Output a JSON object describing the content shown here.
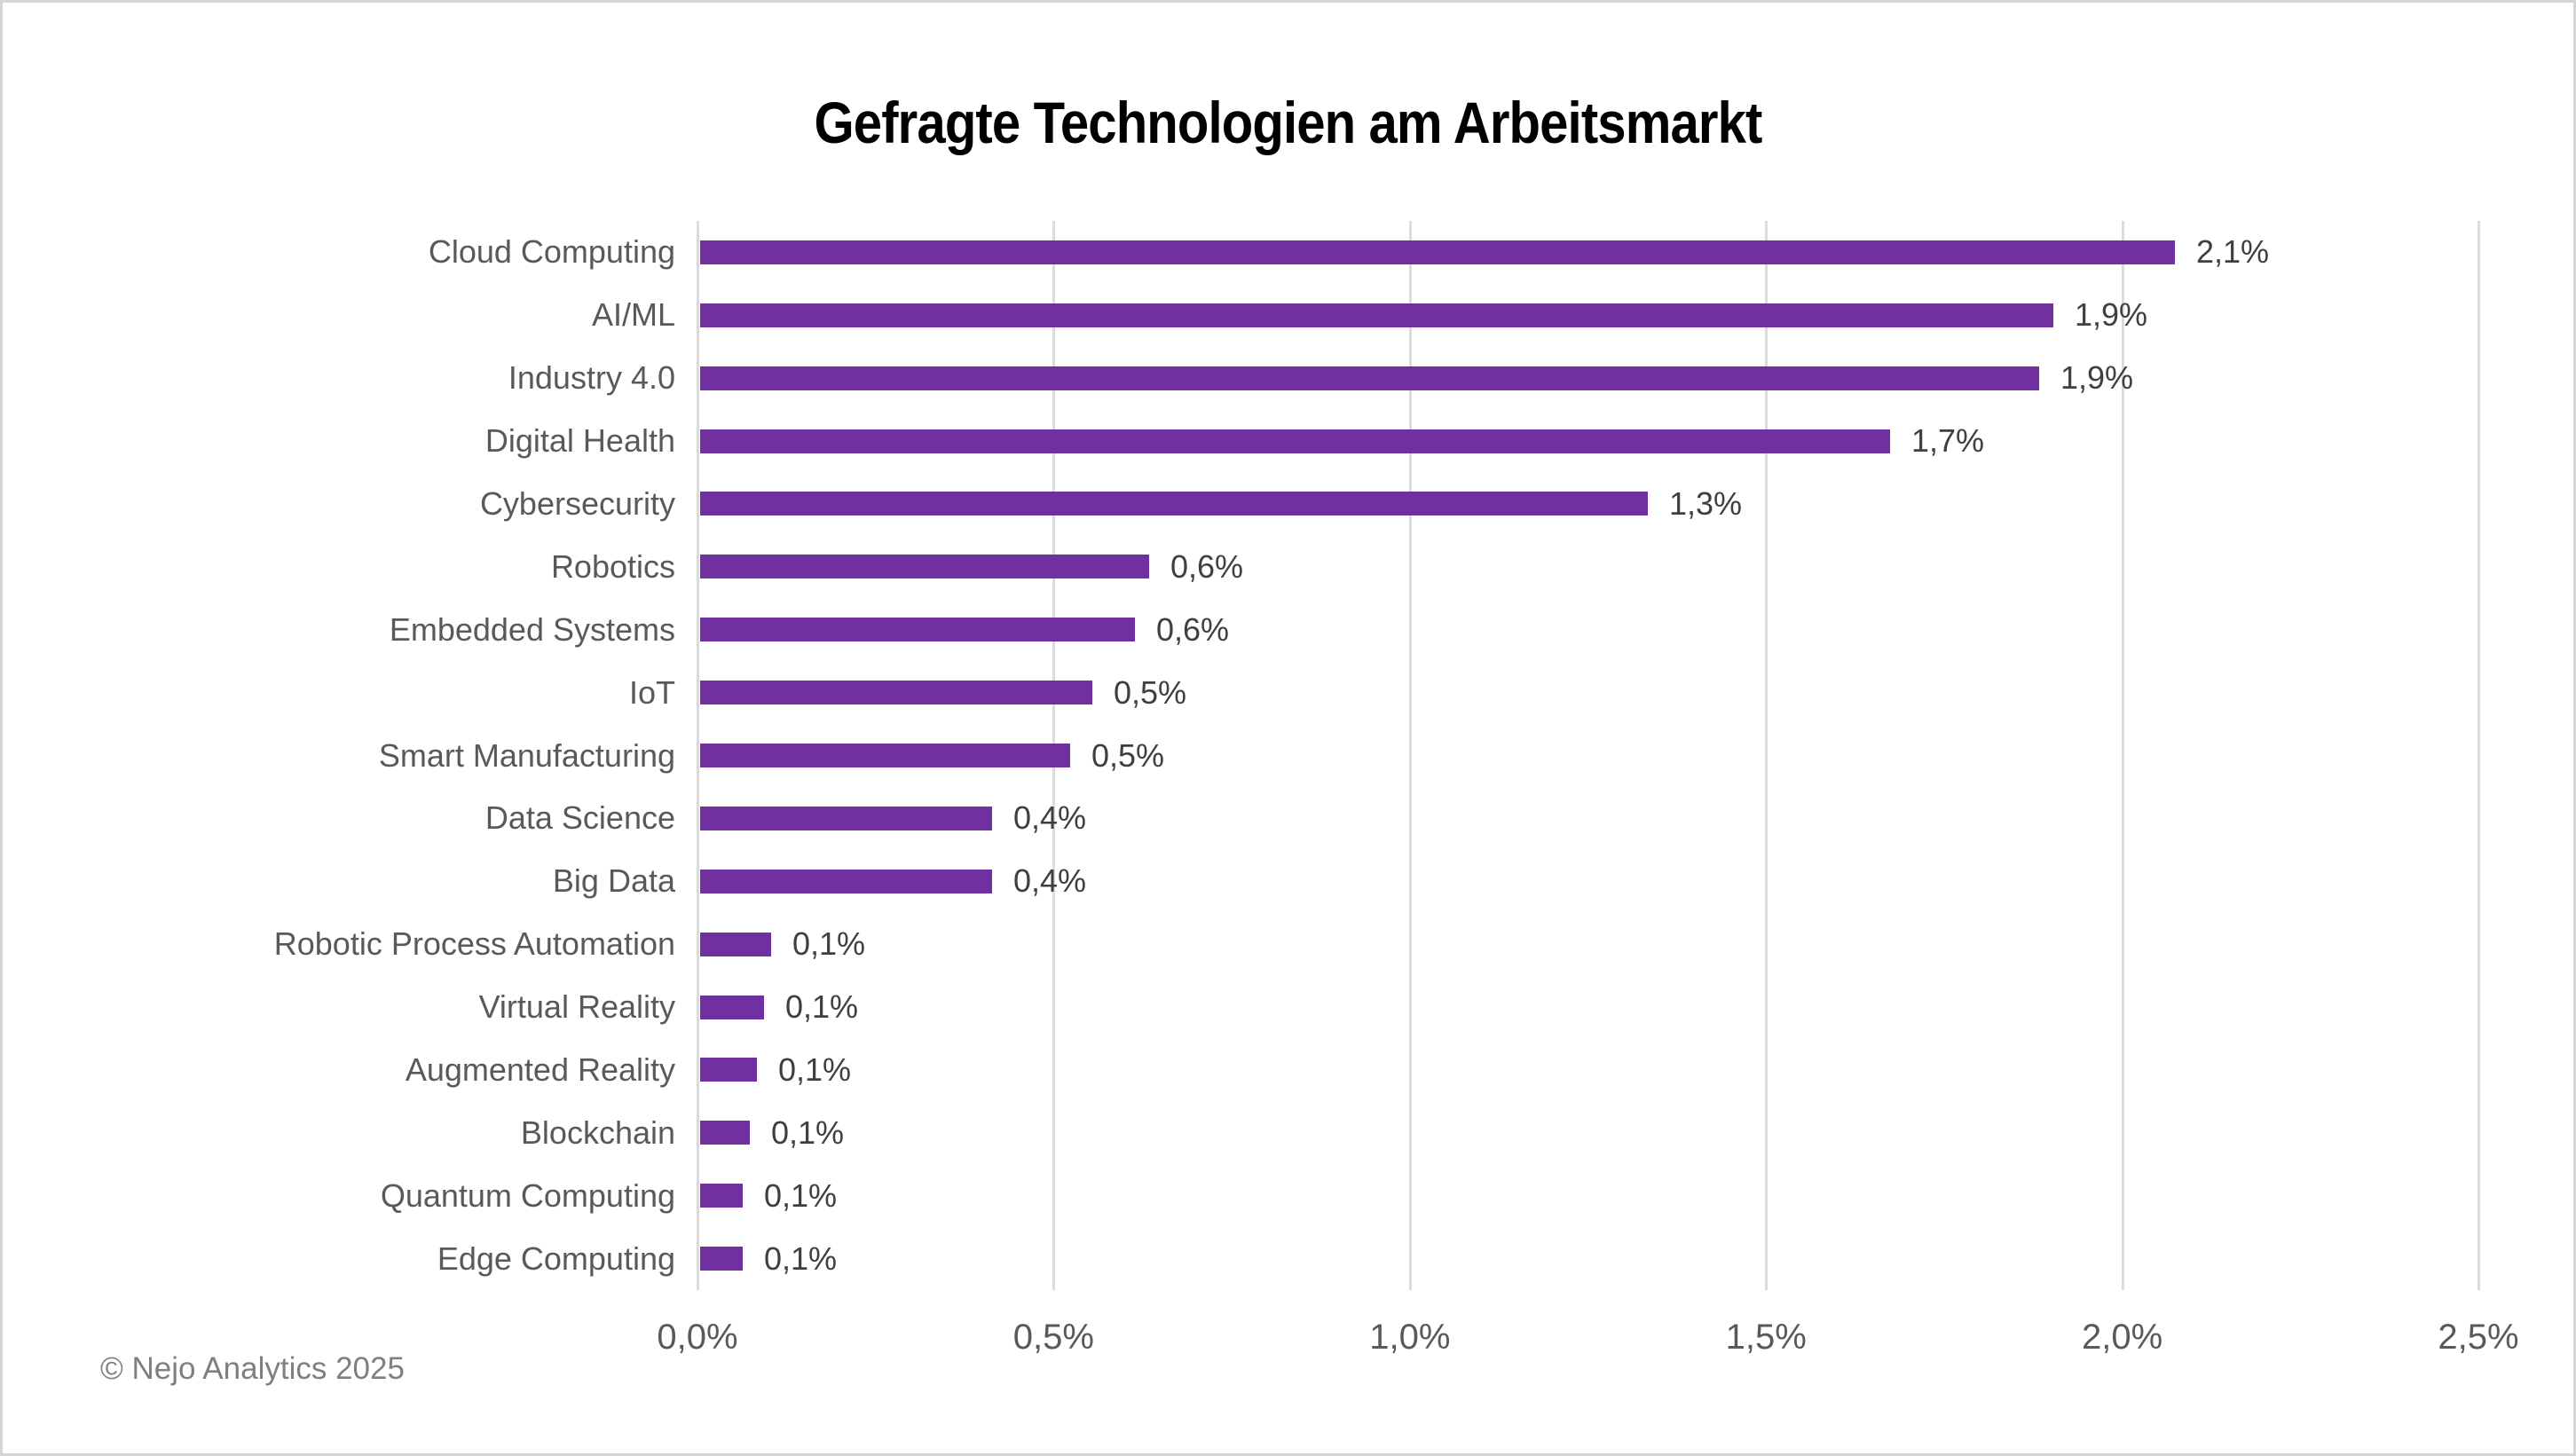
{
  "page": {
    "title": "Gefragte Technologien am Arbeitsmarkt",
    "footer": "© Nejo Analytics 2025"
  },
  "colors": {
    "background": "#FFFFFF",
    "border": "#D5D5D5",
    "bar": "#7030A0",
    "gridline": "#DBDBDB",
    "title_text": "#000000",
    "category_text": "#595959",
    "value_text": "#3F3F3F",
    "axis_text": "#595959",
    "footer_text": "#7F7F7F"
  },
  "chart_data": {
    "type": "bar",
    "orientation": "horizontal",
    "title": "Gefragte Technologien am Arbeitsmarkt",
    "categories": [
      "Cloud Computing",
      "AI/ML",
      "Industry 4.0",
      "Digital Health",
      "Cybersecurity",
      "Robotics",
      "Embedded Systems",
      "IoT",
      "Smart Manufacturing",
      "Data Science",
      "Big Data",
      "Robotic Process Automation",
      "Virtual Reality",
      "Augmented Reality",
      "Blockchain",
      "Quantum Computing",
      "Edge Computing"
    ],
    "values": [
      2.07,
      1.9,
      1.88,
      1.67,
      1.33,
      0.63,
      0.61,
      0.55,
      0.52,
      0.41,
      0.41,
      0.1,
      0.09,
      0.08,
      0.07,
      0.06,
      0.06
    ],
    "value_labels": [
      "2,1%",
      "1,9%",
      "1,9%",
      "1,7%",
      "1,3%",
      "0,6%",
      "0,6%",
      "0,5%",
      "0,5%",
      "0,4%",
      "0,4%",
      "0,1%",
      "0,1%",
      "0,1%",
      "0,1%",
      "0,1%",
      "0,1%"
    ],
    "xlabel": "",
    "ylabel": "",
    "xlim": [
      0,
      2.5
    ],
    "x_ticks": [
      "0,0%",
      "0,5%",
      "1,0%",
      "1,5%",
      "2,0%",
      "2,5%"
    ],
    "grid": true,
    "legend": false
  }
}
